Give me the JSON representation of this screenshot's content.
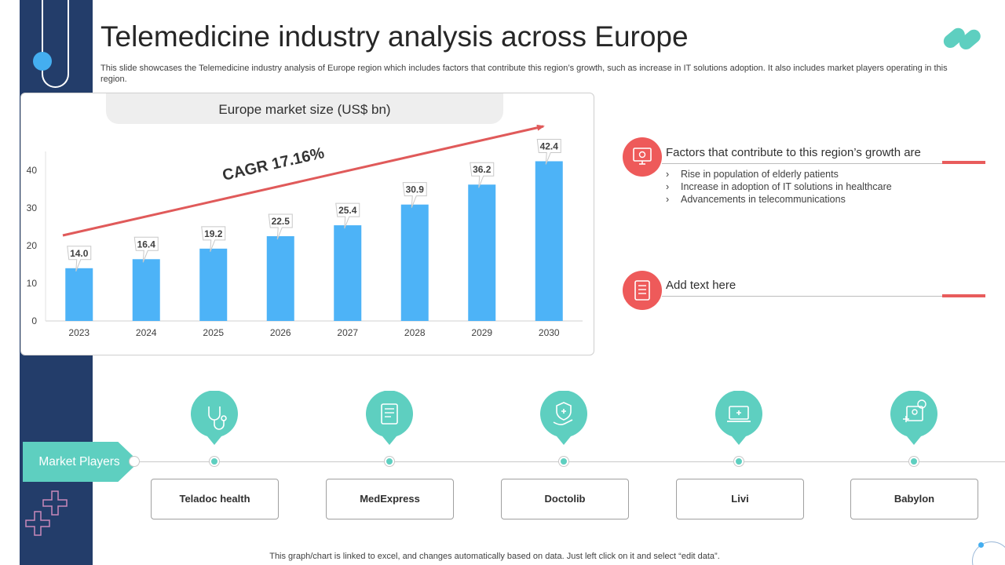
{
  "header": {
    "title": "Telemedicine industry analysis across Europe",
    "subtitle": "This slide showcases the Telemedicine industry analysis of Europe region which includes factors that contribute this region’s growth, such as increase in IT solutions adoption. It also includes market players operating in this region."
  },
  "chart_data": {
    "type": "bar",
    "title": "Europe market size (US$ bn)",
    "categories": [
      "2023",
      "2024",
      "2025",
      "2026",
      "2027",
      "2028",
      "2029",
      "2030"
    ],
    "values": [
      14.0,
      16.4,
      19.2,
      22.5,
      25.4,
      30.9,
      36.2,
      42.4
    ],
    "data_labels": [
      "14.0",
      "16.4",
      "19.2",
      "22.5",
      "25.4",
      "30.9",
      "36.2",
      "42.4"
    ],
    "ylim": [
      0,
      45
    ],
    "yticks": [
      0,
      10,
      20,
      30,
      40
    ],
    "xlabel": "",
    "ylabel": "",
    "grid": false,
    "annotation": "CAGR 17.16%",
    "bar_color": "#4db3f7",
    "arrow_color": "#e05a5a"
  },
  "factors": [
    {
      "heading": "Factors that contribute to this region’s growth are",
      "icon": "monitor-gear-icon",
      "bullets": [
        "Rise in population of elderly patients",
        "Increase in adoption of IT solutions in healthcare",
        "Advancements in telecommunications"
      ]
    },
    {
      "heading": "Add text here",
      "icon": "document-checklist-icon",
      "bullets": []
    }
  ],
  "market_players": {
    "label": "Market Players",
    "players": [
      {
        "name": "Teladoc health",
        "icon": "stethoscope-icon"
      },
      {
        "name": "MedExpress",
        "icon": "prescription-icon"
      },
      {
        "name": "Doctolib",
        "icon": "medical-shield-hand-icon"
      },
      {
        "name": "Livi",
        "icon": "laptop-medical-icon"
      },
      {
        "name": "Babylon",
        "icon": "video-consult-icon"
      }
    ]
  },
  "bullet_glyph": "›",
  "footnote": "This graph/chart is linked to excel,  and changes automatically based on data. Just left click on it and select “edit data”.",
  "colors": {
    "navy": "#233d6a",
    "teal": "#5ecfc0",
    "red": "#ee5a5a",
    "blue": "#4db3f7"
  }
}
